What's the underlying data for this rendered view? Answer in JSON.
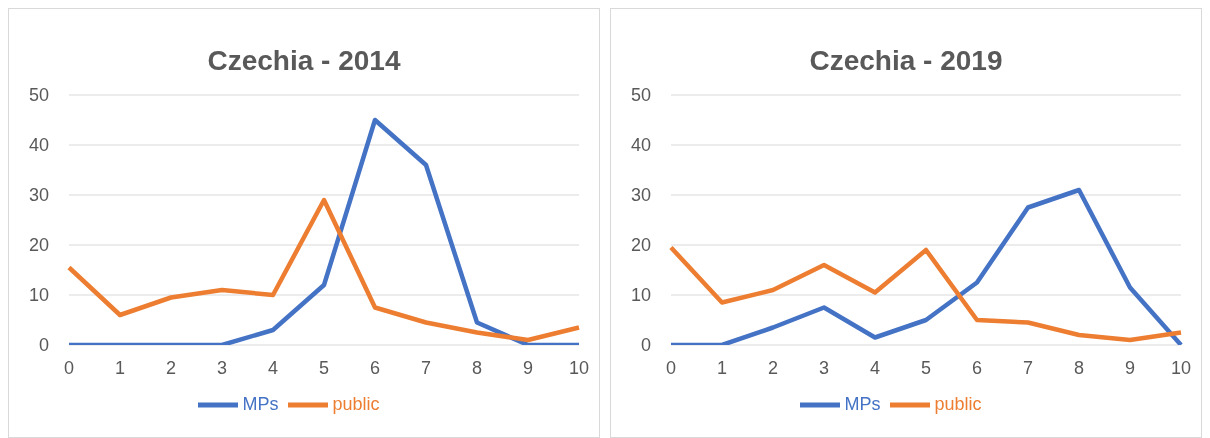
{
  "chart_data": [
    {
      "type": "line",
      "title": "Czechia - 2014",
      "categories": [
        "0",
        "1",
        "2",
        "3",
        "4",
        "5",
        "6",
        "7",
        "8",
        "9",
        "10"
      ],
      "series": [
        {
          "name": "MPs",
          "color": "#4472c4",
          "values": [
            0,
            0,
            0,
            0,
            3,
            12,
            45,
            36,
            4.5,
            0,
            0
          ]
        },
        {
          "name": "public",
          "color": "#ed7d31",
          "values": [
            15.5,
            6,
            9.5,
            11,
            10,
            29,
            7.5,
            4.5,
            2.5,
            1,
            3.5
          ]
        }
      ],
      "ylim": [
        0,
        50
      ],
      "yticks": [
        0,
        10,
        20,
        30,
        40,
        50
      ],
      "grid": "y",
      "legend": "bottom",
      "marker": "none"
    },
    {
      "type": "line",
      "title": "Czechia - 2019",
      "categories": [
        "0",
        "1",
        "2",
        "3",
        "4",
        "5",
        "6",
        "7",
        "8",
        "9",
        "10"
      ],
      "series": [
        {
          "name": "MPs",
          "color": "#4472c4",
          "values": [
            0,
            0,
            3.5,
            7.5,
            1.5,
            5,
            12.5,
            27.5,
            31,
            11.5,
            0
          ]
        },
        {
          "name": "public",
          "color": "#ed7d31",
          "values": [
            19.5,
            8.5,
            11,
            16,
            10.5,
            19,
            5,
            4.5,
            2,
            1,
            2.5
          ]
        }
      ],
      "ylim": [
        0,
        50
      ],
      "yticks": [
        0,
        10,
        20,
        30,
        40,
        50
      ],
      "grid": "y",
      "legend": "bottom",
      "marker": "none"
    }
  ]
}
